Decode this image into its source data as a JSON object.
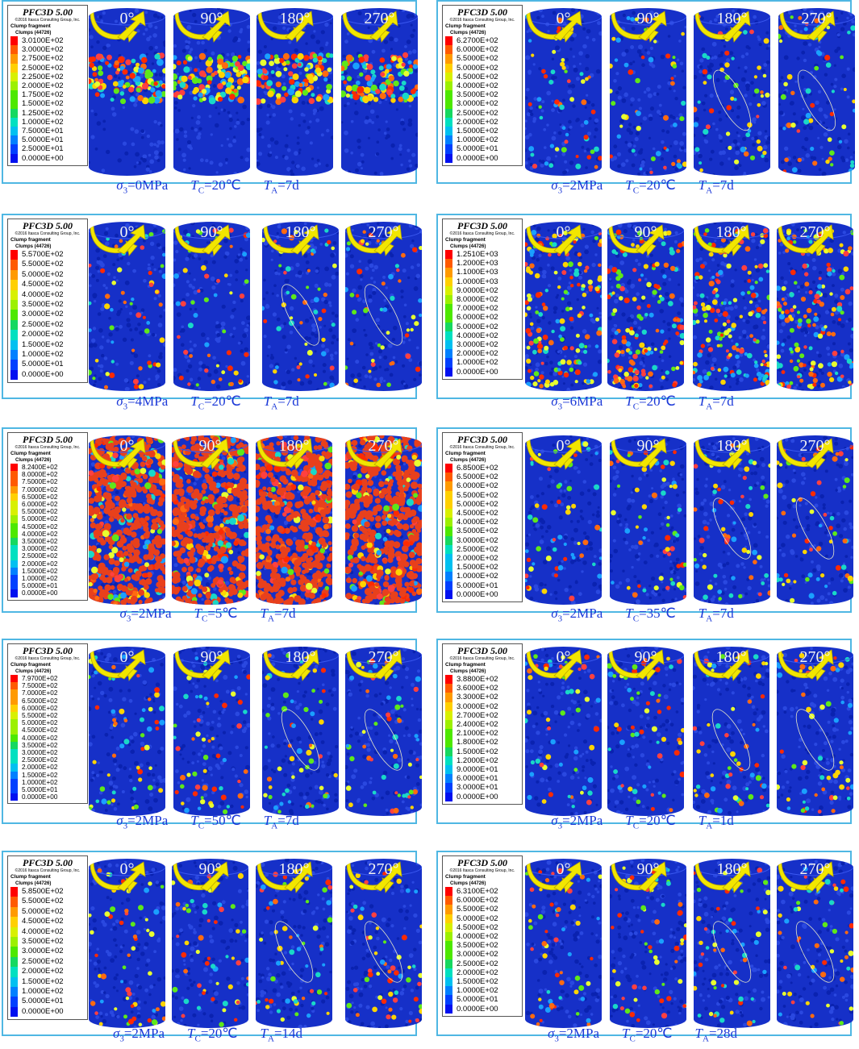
{
  "views": [
    "0°",
    "90°",
    "180°",
    "270°"
  ],
  "legend_title": "PFC3D 5.00",
  "legend_copyright": "©2016 Itasca Consulting Group, Inc.",
  "legend_subtitle": "Clump fragment",
  "legend_subtitle2": "Clumps (44726)",
  "colors": {
    "frame": "#4fb7e3",
    "caption": "#1c39d8",
    "background_particles": "#1630c8",
    "arrow": "#f2e600"
  },
  "panels": [
    {
      "id": "a",
      "sigma3": "=0MPa",
      "tc": "=20℃",
      "ta": "=7d",
      "pattern": "band",
      "legend": [
        "3.0100E+02",
        "3.0000E+02",
        "2.7500E+02",
        "2.5000E+02",
        "2.2500E+02",
        "2.0000E+02",
        "1.7500E+02",
        "1.5000E+02",
        "1.2500E+02",
        "1.0000E+02",
        "7.5000E+01",
        "5.0000E+01",
        "2.5000E+01",
        "0.0000E+00"
      ]
    },
    {
      "id": "b",
      "sigma3": "=2MPa",
      "tc": "=20℃",
      "ta": "=7d",
      "pattern": "sparse",
      "legend": [
        "6.2700E+02",
        "6.0000E+02",
        "5.5000E+02",
        "5.0000E+02",
        "4.5000E+02",
        "4.0000E+02",
        "3.5000E+02",
        "3.0000E+02",
        "2.5000E+02",
        "2.0000E+02",
        "1.5000E+02",
        "1.0000E+02",
        "5.0000E+01",
        "0.0000E+00"
      ]
    },
    {
      "id": "c",
      "sigma3": "=4MPa",
      "tc": "=20℃",
      "ta": "=7d",
      "pattern": "sparse",
      "legend": [
        "5.5700E+02",
        "5.5000E+02",
        "5.0000E+02",
        "4.5000E+02",
        "4.0000E+02",
        "3.5000E+02",
        "3.0000E+02",
        "2.5000E+02",
        "2.0000E+02",
        "1.5000E+02",
        "1.0000E+02",
        "5.0000E+01",
        "0.0000E+00"
      ]
    },
    {
      "id": "d",
      "sigma3": "=6MPa",
      "tc": "=20℃",
      "ta": "=7d",
      "pattern": "medium",
      "legend": [
        "1.2510E+03",
        "1.2000E+03",
        "1.1000E+03",
        "1.0000E+03",
        "9.0000E+02",
        "8.0000E+02",
        "7.0000E+02",
        "6.0000E+02",
        "5.0000E+02",
        "4.0000E+02",
        "3.0000E+02",
        "2.0000E+02",
        "1.0000E+02",
        "0.0000E+00"
      ]
    },
    {
      "id": "e",
      "sigma3": "=2MPa",
      "tc": "=5℃",
      "ta": "=7d",
      "pattern": "dense",
      "legend": [
        "8.2400E+02",
        "8.0000E+02",
        "7.5000E+02",
        "7.0000E+02",
        "6.5000E+02",
        "6.0000E+02",
        "5.5000E+02",
        "5.0000E+02",
        "4.5000E+02",
        "4.0000E+02",
        "3.5000E+02",
        "3.0000E+02",
        "2.5000E+02",
        "2.0000E+02",
        "1.5000E+02",
        "1.0000E+02",
        "5.0000E+01",
        "0.0000E+00"
      ]
    },
    {
      "id": "f",
      "sigma3": "=2MPa",
      "tc": "=35℃",
      "ta": "=7d",
      "pattern": "sparse",
      "legend": [
        "6.8500E+02",
        "6.5000E+02",
        "6.0000E+02",
        "5.5000E+02",
        "5.0000E+02",
        "4.5000E+02",
        "4.0000E+02",
        "3.5000E+02",
        "3.0000E+02",
        "2.5000E+02",
        "2.0000E+02",
        "1.5000E+02",
        "1.0000E+02",
        "5.0000E+01",
        "0.0000E+00"
      ]
    },
    {
      "id": "g",
      "sigma3": "=2MPa",
      "tc": "=50℃",
      "ta": "=7d",
      "pattern": "sparse",
      "legend": [
        "7.9700E+02",
        "7.5000E+02",
        "7.0000E+02",
        "6.5000E+02",
        "6.0000E+02",
        "5.5000E+02",
        "5.0000E+02",
        "4.5000E+02",
        "4.0000E+02",
        "3.5000E+02",
        "3.0000E+02",
        "2.5000E+02",
        "2.0000E+02",
        "1.5000E+02",
        "1.0000E+02",
        "5.0000E+01",
        "0.0000E+00"
      ]
    },
    {
      "id": "h",
      "sigma3": "=2MPa",
      "tc": "=20℃",
      "ta": "=1d",
      "pattern": "sparse",
      "legend": [
        "3.8800E+02",
        "3.6000E+02",
        "3.3000E+02",
        "3.0000E+02",
        "2.7000E+02",
        "2.4000E+02",
        "2.1000E+02",
        "1.8000E+02",
        "1.5000E+02",
        "1.2000E+02",
        "9.0000E+01",
        "6.0000E+01",
        "3.0000E+01",
        "0.0000E+00"
      ]
    },
    {
      "id": "i",
      "sigma3": "=2MPa",
      "tc": "=20℃",
      "ta": "=14d",
      "pattern": "sparse",
      "legend": [
        "5.8500E+02",
        "5.5000E+02",
        "5.0000E+02",
        "4.5000E+02",
        "4.0000E+02",
        "3.5000E+02",
        "3.0000E+02",
        "2.5000E+02",
        "2.0000E+02",
        "1.5000E+02",
        "1.0000E+02",
        "5.0000E+01",
        "0.0000E+00"
      ]
    },
    {
      "id": "j",
      "sigma3": "=2MPa",
      "tc": "=20℃",
      "ta": "=28d",
      "pattern": "sparse",
      "legend": [
        "6.3100E+02",
        "6.0000E+02",
        "5.5000E+02",
        "5.0000E+02",
        "4.5000E+02",
        "4.0000E+02",
        "3.5000E+02",
        "3.0000E+02",
        "2.5000E+02",
        "2.0000E+02",
        "1.5000E+02",
        "1.0000E+02",
        "5.0000E+01",
        "0.0000E+00"
      ]
    }
  ]
}
